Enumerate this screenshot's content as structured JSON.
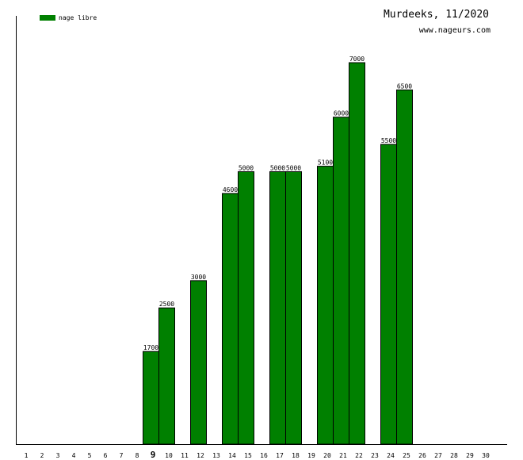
{
  "header": {
    "title": "Murdeeks, 11/2020",
    "site": "www.nageurs.com"
  },
  "legend": {
    "label": "nage libre",
    "color": "#008000"
  },
  "colors": {
    "bar": "#008000",
    "bar_edge": "#000000",
    "axis": "#000000"
  },
  "chart_data": {
    "type": "bar",
    "title": "Murdeeks, 11/2020",
    "xlabel": "",
    "ylabel": "",
    "categories": [
      "1",
      "2",
      "3",
      "4",
      "5",
      "6",
      "7",
      "8",
      "9",
      "10",
      "11",
      "12",
      "13",
      "14",
      "15",
      "16",
      "17",
      "18",
      "19",
      "20",
      "21",
      "22",
      "23",
      "24",
      "25",
      "26",
      "27",
      "28",
      "29",
      "30"
    ],
    "highlight_category": "9",
    "series": [
      {
        "name": "nage libre",
        "values": [
          null,
          null,
          null,
          null,
          null,
          null,
          null,
          null,
          1700,
          2500,
          null,
          3000,
          null,
          4600,
          5000,
          null,
          5000,
          5000,
          null,
          5100,
          6000,
          7000,
          null,
          5500,
          6500,
          null,
          null,
          null,
          null,
          null
        ]
      }
    ],
    "ylim": [
      0,
      7500
    ],
    "grid": false,
    "legend_position": "top-left"
  }
}
